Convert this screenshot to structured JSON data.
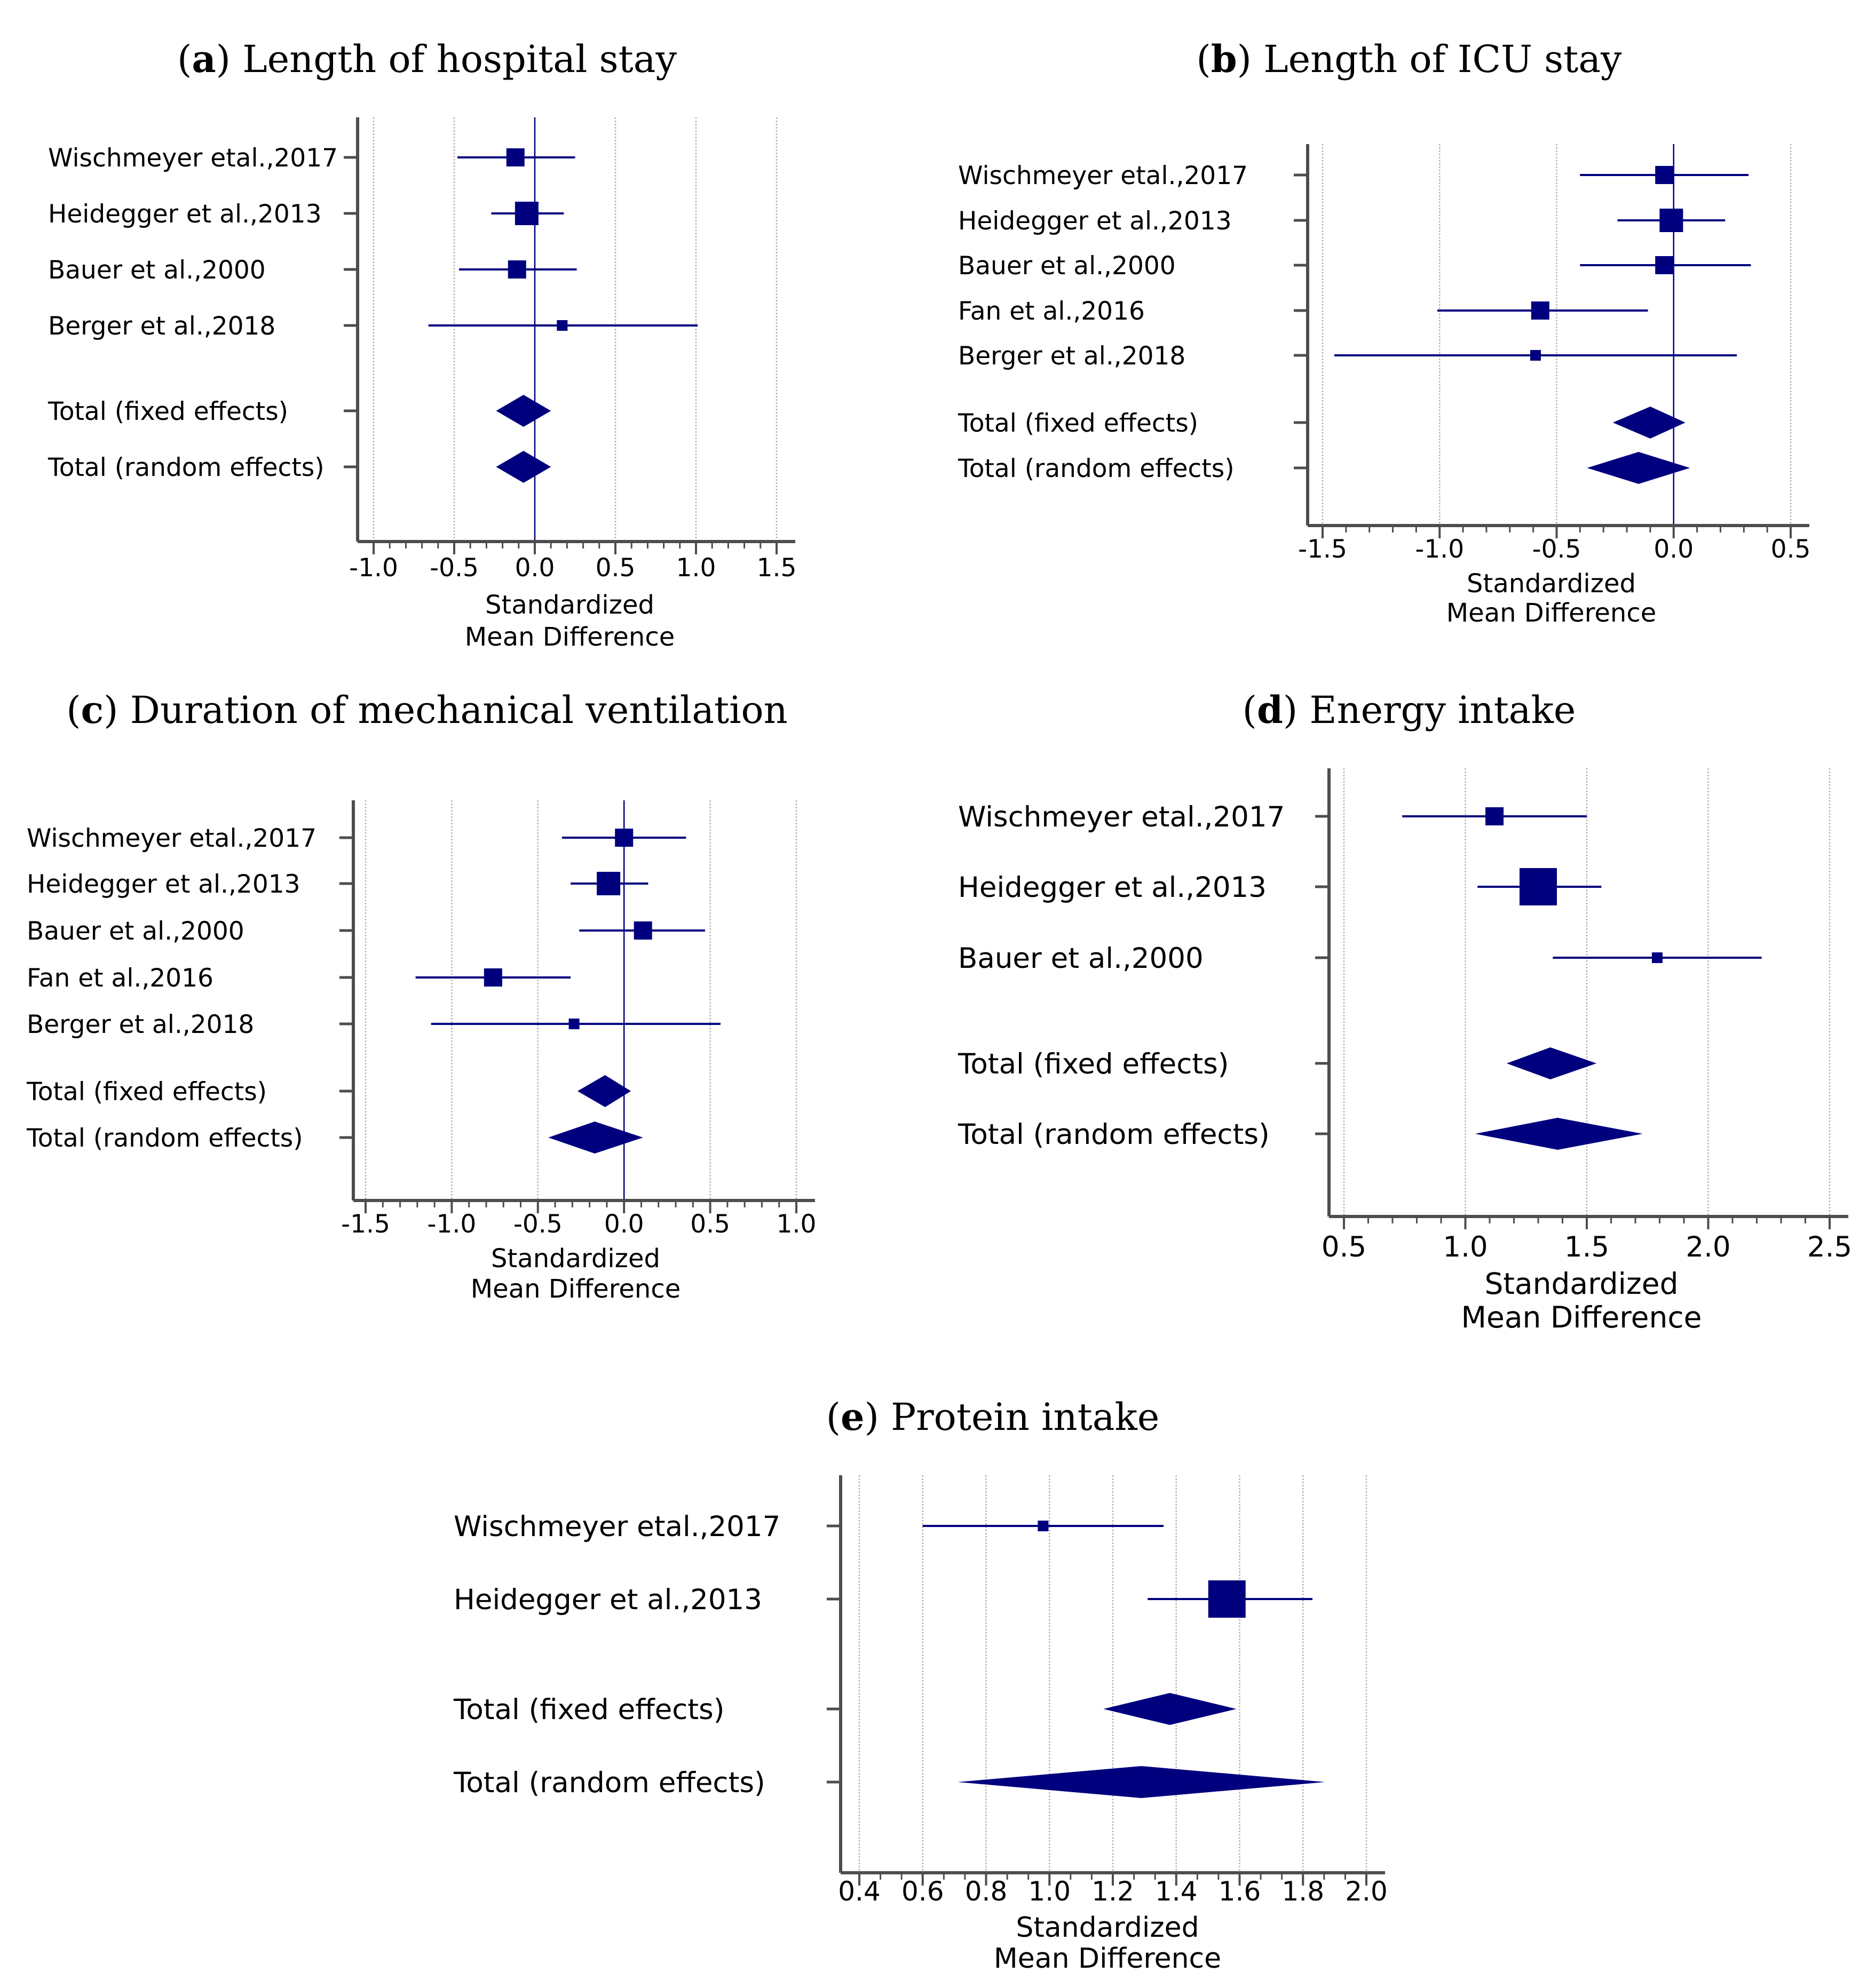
{
  "chart_data": [
    {
      "type": "forest",
      "panel_letter": "a",
      "title": "Length of hospital stay",
      "xlabel": [
        "Standardized",
        "Mean Difference"
      ],
      "xlim": [
        -1.0,
        1.5
      ],
      "xticks": [
        "-1.0",
        "-0.5",
        "0.0",
        "0.5",
        "1.0",
        "1.5"
      ],
      "grid": true,
      "studies": [
        {
          "label": "Wischmeyer etal.,2017",
          "smd": -0.12,
          "ci": [
            -0.48,
            0.25
          ],
          "weight": 2
        },
        {
          "label": "Heidegger et al.,2013",
          "smd": -0.05,
          "ci": [
            -0.27,
            0.18
          ],
          "weight": 3
        },
        {
          "label": "Bauer et al.,2000",
          "smd": -0.11,
          "ci": [
            -0.47,
            0.26
          ],
          "weight": 2
        },
        {
          "label": "Berger et al.,2018",
          "smd": 0.17,
          "ci": [
            -0.66,
            1.01
          ],
          "weight": 1
        }
      ],
      "totals": [
        {
          "label": "Total (fixed effects)",
          "smd": -0.07,
          "ci": [
            -0.24,
            0.1
          ]
        },
        {
          "label": "Total (random effects)",
          "smd": -0.07,
          "ci": [
            -0.24,
            0.1
          ]
        }
      ]
    },
    {
      "type": "forest",
      "panel_letter": "b",
      "title": "Length of ICU stay",
      "xlabel": [
        "Standardized",
        "Mean Difference"
      ],
      "xlim": [
        -1.5,
        0.5
      ],
      "xticks": [
        "-1.5",
        "-1.0",
        "-0.5",
        "0.0",
        "0.5"
      ],
      "grid": true,
      "studies": [
        {
          "label": "Wischmeyer etal.,2017",
          "smd": -0.04,
          "ci": [
            -0.4,
            0.32
          ],
          "weight": 2
        },
        {
          "label": "Heidegger et al.,2013",
          "smd": -0.01,
          "ci": [
            -0.24,
            0.22
          ],
          "weight": 3
        },
        {
          "label": "Bauer et al.,2000",
          "smd": -0.04,
          "ci": [
            -0.4,
            0.33
          ],
          "weight": 2
        },
        {
          "label": "Fan et al.,2016",
          "smd": -0.57,
          "ci": [
            -1.01,
            -0.11
          ],
          "weight": 2
        },
        {
          "label": "Berger et al.,2018",
          "smd": -0.59,
          "ci": [
            -1.45,
            0.27
          ],
          "weight": 1
        }
      ],
      "totals": [
        {
          "label": "Total (fixed effects)",
          "smd": -0.1,
          "ci": [
            -0.26,
            0.05
          ]
        },
        {
          "label": "Total (random effects)",
          "smd": -0.15,
          "ci": [
            -0.37,
            0.07
          ]
        }
      ]
    },
    {
      "type": "forest",
      "panel_letter": "c",
      "title": "Duration of mechanical ventilation",
      "xlabel": [
        "Standardized",
        "Mean Difference"
      ],
      "xlim": [
        -1.5,
        1.0
      ],
      "xticks": [
        "-1.5",
        "-1.0",
        "-0.5",
        "0.0",
        "0.5",
        "1.0"
      ],
      "grid": true,
      "studies": [
        {
          "label": "Wischmeyer etal.,2017",
          "smd": 0.0,
          "ci": [
            -0.36,
            0.36
          ],
          "weight": 2
        },
        {
          "label": "Heidegger et al.,2013",
          "smd": -0.09,
          "ci": [
            -0.31,
            0.14
          ],
          "weight": 3
        },
        {
          "label": "Bauer et al.,2000",
          "smd": 0.11,
          "ci": [
            -0.26,
            0.47
          ],
          "weight": 2
        },
        {
          "label": "Fan et al.,2016",
          "smd": -0.76,
          "ci": [
            -1.21,
            -0.31
          ],
          "weight": 2
        },
        {
          "label": "Berger et al.,2018",
          "smd": -0.29,
          "ci": [
            -1.12,
            0.56
          ],
          "weight": 1
        }
      ],
      "totals": [
        {
          "label": "Total (fixed effects)",
          "smd": -0.11,
          "ci": [
            -0.27,
            0.04
          ]
        },
        {
          "label": "Total (random effects)",
          "smd": -0.17,
          "ci": [
            -0.44,
            0.11
          ]
        }
      ]
    },
    {
      "type": "forest",
      "panel_letter": "d",
      "title": "Energy intake",
      "xlabel": [
        "Standardized",
        "Mean Difference"
      ],
      "xlim": [
        0.5,
        2.5
      ],
      "xticks": [
        "0.5",
        "1.0",
        "1.5",
        "2.0",
        "2.5"
      ],
      "grid": true,
      "studies": [
        {
          "label": "Wischmeyer etal.,2017",
          "smd": 1.12,
          "ci": [
            0.74,
            1.5
          ],
          "weight": 2
        },
        {
          "label": "Heidegger et al.,2013",
          "smd": 1.3,
          "ci": [
            1.05,
            1.56
          ],
          "weight": 4
        },
        {
          "label": "Bauer et al.,2000",
          "smd": 1.79,
          "ci": [
            1.36,
            2.22
          ],
          "weight": 1
        }
      ],
      "totals": [
        {
          "label": "Total (fixed effects)",
          "smd": 1.35,
          "ci": [
            1.17,
            1.54
          ]
        },
        {
          "label": "Total (random effects)",
          "smd": 1.38,
          "ci": [
            1.04,
            1.73
          ]
        }
      ]
    },
    {
      "type": "forest",
      "panel_letter": "e",
      "title": "Protein intake",
      "xlabel": [
        "Standardized",
        "Mean Difference"
      ],
      "xlim": [
        0.4,
        2.0
      ],
      "xticks": [
        "0.4",
        "0.6",
        "0.8",
        "1.0",
        "1.2",
        "1.4",
        "1.6",
        "1.8",
        "2.0"
      ],
      "grid": true,
      "studies": [
        {
          "label": "Wischmeyer etal.,2017",
          "smd": 0.98,
          "ci": [
            0.6,
            1.36
          ],
          "weight": 1
        },
        {
          "label": "Heidegger et al.,2013",
          "smd": 1.56,
          "ci": [
            1.31,
            1.83
          ],
          "weight": 4
        }
      ],
      "totals": [
        {
          "label": "Total (fixed effects)",
          "smd": 1.38,
          "ci": [
            1.17,
            1.59
          ]
        },
        {
          "label": "Total (random effects)",
          "smd": 1.29,
          "ci": [
            0.71,
            1.87
          ]
        }
      ]
    }
  ],
  "colors": {
    "marker": "#00007f",
    "axis": "#4d4d4d",
    "grid": "#b3b3b3"
  }
}
